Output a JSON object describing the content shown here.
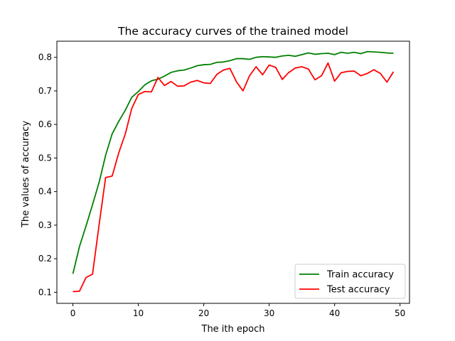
{
  "chart_data": {
    "type": "line",
    "title": "The accuracy curves of the trained model",
    "xlabel": "The ith epoch",
    "ylabel": "The values of accuracy",
    "xlim": [
      -2.45,
      51.45
    ],
    "ylim": [
      0.067,
      0.848
    ],
    "x_ticks": [
      0,
      10,
      20,
      30,
      40,
      50
    ],
    "y_ticks": [
      0.1,
      0.2,
      0.3,
      0.4,
      0.5,
      0.6,
      0.7,
      0.8
    ],
    "legend_position": "lower right",
    "grid": false,
    "x": [
      0,
      1,
      2,
      3,
      4,
      5,
      6,
      7,
      8,
      9,
      10,
      11,
      12,
      13,
      14,
      15,
      16,
      17,
      18,
      19,
      20,
      21,
      22,
      23,
      24,
      25,
      26,
      27,
      28,
      29,
      30,
      31,
      32,
      33,
      34,
      35,
      36,
      37,
      38,
      39,
      40,
      41,
      42,
      43,
      44,
      45,
      46,
      47,
      48,
      49
    ],
    "series": [
      {
        "name": "Train accuracy",
        "color": "#008000",
        "values": [
          0.155,
          0.236,
          0.297,
          0.361,
          0.427,
          0.508,
          0.572,
          0.609,
          0.642,
          0.681,
          0.698,
          0.718,
          0.73,
          0.735,
          0.744,
          0.755,
          0.76,
          0.762,
          0.768,
          0.775,
          0.778,
          0.779,
          0.785,
          0.786,
          0.79,
          0.796,
          0.796,
          0.794,
          0.8,
          0.802,
          0.801,
          0.8,
          0.804,
          0.806,
          0.803,
          0.808,
          0.813,
          0.809,
          0.811,
          0.812,
          0.808,
          0.815,
          0.812,
          0.815,
          0.811,
          0.817,
          0.816,
          0.815,
          0.813,
          0.812
        ]
      },
      {
        "name": "Test accuracy",
        "color": "#ff0000",
        "values": [
          0.102,
          0.103,
          0.144,
          0.154,
          0.3,
          0.442,
          0.446,
          0.515,
          0.571,
          0.648,
          0.689,
          0.698,
          0.697,
          0.74,
          0.716,
          0.728,
          0.714,
          0.715,
          0.726,
          0.731,
          0.724,
          0.722,
          0.749,
          0.762,
          0.767,
          0.727,
          0.7,
          0.745,
          0.772,
          0.748,
          0.777,
          0.77,
          0.734,
          0.755,
          0.768,
          0.772,
          0.765,
          0.733,
          0.745,
          0.783,
          0.729,
          0.754,
          0.758,
          0.759,
          0.745,
          0.752,
          0.763,
          0.752,
          0.726,
          0.757
        ]
      }
    ]
  }
}
